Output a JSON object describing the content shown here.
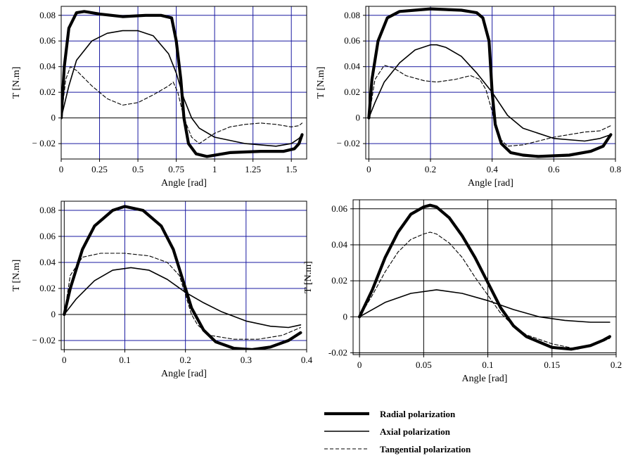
{
  "colors": {
    "grid_blue": "#1a1aa0",
    "grid_black": "#000000",
    "curve": "#000000"
  },
  "legend": [
    {
      "label": "Radial polarization",
      "style": "thick"
    },
    {
      "label": "Axial polarization",
      "style": "thin"
    },
    {
      "label": "Tangential polarization",
      "style": "dashed"
    }
  ],
  "chart_data": [
    {
      "type": "line",
      "xlabel": "Angle [rad]",
      "ylabel": "T [N.m]",
      "xlim": [
        0,
        1.6
      ],
      "ylim": [
        -0.032,
        0.087
      ],
      "xticks": [
        0,
        0.25,
        0.5,
        0.75,
        1,
        1.25,
        1.5
      ],
      "xtick_labels": [
        "0",
        "0.25",
        "0.5",
        "0.75",
        "1",
        "1.25",
        "1.5"
      ],
      "yticks": [
        -0.02,
        0,
        0.02,
        0.04,
        0.06,
        0.08
      ],
      "ytick_labels": [
        "− 0.02",
        "0",
        "0.02",
        "0.04",
        "0.06",
        "0.08"
      ],
      "grid": "blue",
      "series": [
        {
          "name": "Radial polarization",
          "style": "thick",
          "x": [
            0,
            0.02,
            0.05,
            0.1,
            0.15,
            0.25,
            0.4,
            0.55,
            0.65,
            0.72,
            0.75,
            0.78,
            0.8,
            0.83,
            0.88,
            0.95,
            1.1,
            1.3,
            1.45,
            1.52,
            1.55,
            1.57
          ],
          "y": [
            0,
            0.04,
            0.07,
            0.082,
            0.083,
            0.081,
            0.079,
            0.08,
            0.08,
            0.078,
            0.06,
            0.03,
            0.0,
            -0.02,
            -0.028,
            -0.03,
            -0.027,
            -0.026,
            -0.026,
            -0.024,
            -0.02,
            -0.013
          ]
        },
        {
          "name": "Axial polarization",
          "style": "thin",
          "x": [
            0,
            0.05,
            0.1,
            0.2,
            0.3,
            0.4,
            0.5,
            0.6,
            0.7,
            0.75,
            0.8,
            0.85,
            0.9,
            1.0,
            1.2,
            1.4,
            1.5,
            1.55,
            1.57
          ],
          "y": [
            0,
            0.025,
            0.045,
            0.06,
            0.066,
            0.068,
            0.068,
            0.064,
            0.05,
            0.035,
            0.015,
            0.0,
            -0.008,
            -0.015,
            -0.02,
            -0.022,
            -0.02,
            -0.016,
            -0.013
          ]
        },
        {
          "name": "Tangential polarization",
          "style": "dashed",
          "x": [
            0,
            0.03,
            0.06,
            0.1,
            0.2,
            0.3,
            0.4,
            0.5,
            0.6,
            0.7,
            0.73,
            0.76,
            0.8,
            0.85,
            0.9,
            1.0,
            1.1,
            1.2,
            1.3,
            1.4,
            1.5,
            1.55,
            1.57
          ],
          "y": [
            0,
            0.03,
            0.04,
            0.037,
            0.025,
            0.015,
            0.01,
            0.012,
            0.018,
            0.025,
            0.028,
            0.02,
            0.0,
            -0.015,
            -0.02,
            -0.012,
            -0.007,
            -0.005,
            -0.004,
            -0.005,
            -0.007,
            -0.006,
            -0.004
          ]
        }
      ]
    },
    {
      "type": "line",
      "xlabel": "Angle [rad]",
      "ylabel": "T [N.m]",
      "xlim": [
        -0.01,
        0.8
      ],
      "ylim": [
        -0.032,
        0.087
      ],
      "xticks": [
        0,
        0.2,
        0.4,
        0.6,
        0.8
      ],
      "xtick_labels": [
        "0",
        "0.2",
        "0.4",
        "0.6",
        "0.8"
      ],
      "yticks": [
        -0.02,
        0,
        0.02,
        0.04,
        0.06,
        0.08
      ],
      "ytick_labels": [
        "− 0.02",
        "0",
        "0.02",
        "0.04",
        "0.06",
        "0.08"
      ],
      "grid": "blue",
      "series": [
        {
          "name": "Radial polarization",
          "style": "thick",
          "x": [
            0,
            0.01,
            0.03,
            0.06,
            0.1,
            0.2,
            0.3,
            0.35,
            0.37,
            0.39,
            0.4,
            0.41,
            0.43,
            0.46,
            0.5,
            0.55,
            0.65,
            0.72,
            0.76,
            0.785
          ],
          "y": [
            0,
            0.03,
            0.06,
            0.078,
            0.083,
            0.085,
            0.084,
            0.082,
            0.078,
            0.06,
            0.02,
            -0.005,
            -0.02,
            -0.027,
            -0.029,
            -0.03,
            -0.029,
            -0.026,
            -0.022,
            -0.013
          ]
        },
        {
          "name": "Axial polarization",
          "style": "thin",
          "x": [
            0,
            0.02,
            0.05,
            0.1,
            0.15,
            0.2,
            0.22,
            0.25,
            0.3,
            0.35,
            0.4,
            0.45,
            0.5,
            0.6,
            0.7,
            0.75,
            0.785
          ],
          "y": [
            0,
            0.012,
            0.028,
            0.043,
            0.053,
            0.057,
            0.057,
            0.055,
            0.048,
            0.035,
            0.02,
            0.002,
            -0.008,
            -0.016,
            -0.018,
            -0.016,
            -0.013
          ]
        },
        {
          "name": "Tangential polarization",
          "style": "dashed",
          "x": [
            0,
            0.02,
            0.05,
            0.08,
            0.12,
            0.18,
            0.22,
            0.28,
            0.33,
            0.36,
            0.38,
            0.4,
            0.42,
            0.45,
            0.5,
            0.6,
            0.7,
            0.75,
            0.785
          ],
          "y": [
            0,
            0.03,
            0.041,
            0.039,
            0.033,
            0.029,
            0.028,
            0.03,
            0.033,
            0.03,
            0.022,
            0.005,
            -0.015,
            -0.022,
            -0.021,
            -0.015,
            -0.011,
            -0.01,
            -0.006
          ]
        }
      ]
    },
    {
      "type": "line",
      "xlabel": "Angle [rad]",
      "ylabel": "T [N.m]",
      "xlim": [
        -0.005,
        0.4
      ],
      "ylim": [
        -0.027,
        0.087
      ],
      "xticks": [
        0,
        0.1,
        0.2,
        0.3,
        0.4
      ],
      "xtick_labels": [
        "0",
        "0.1",
        "0.2",
        "0.3",
        "0.4"
      ],
      "yticks": [
        -0.02,
        0,
        0.02,
        0.04,
        0.06,
        0.08
      ],
      "ytick_labels": [
        "− 0.02",
        "0",
        "0.02",
        "0.04",
        "0.06",
        "0.08"
      ],
      "grid": "blue",
      "series": [
        {
          "name": "Radial polarization",
          "style": "thick",
          "x": [
            0,
            0.01,
            0.03,
            0.05,
            0.08,
            0.1,
            0.13,
            0.16,
            0.18,
            0.2,
            0.21,
            0.23,
            0.25,
            0.28,
            0.31,
            0.34,
            0.37,
            0.39
          ],
          "y": [
            0,
            0.02,
            0.05,
            0.068,
            0.08,
            0.083,
            0.08,
            0.068,
            0.05,
            0.02,
            0.005,
            -0.012,
            -0.021,
            -0.026,
            -0.027,
            -0.025,
            -0.02,
            -0.014
          ]
        },
        {
          "name": "Axial polarization",
          "style": "thin",
          "x": [
            0,
            0.02,
            0.05,
            0.08,
            0.11,
            0.14,
            0.17,
            0.2,
            0.23,
            0.26,
            0.3,
            0.34,
            0.37,
            0.39
          ],
          "y": [
            0,
            0.012,
            0.026,
            0.034,
            0.036,
            0.034,
            0.027,
            0.017,
            0.009,
            0.002,
            -0.005,
            -0.009,
            -0.01,
            -0.008
          ]
        },
        {
          "name": "Tangential polarization",
          "style": "dashed",
          "x": [
            0,
            0.01,
            0.03,
            0.06,
            0.1,
            0.14,
            0.17,
            0.19,
            0.2,
            0.21,
            0.22,
            0.24,
            0.28,
            0.32,
            0.36,
            0.39
          ],
          "y": [
            0,
            0.03,
            0.044,
            0.047,
            0.047,
            0.045,
            0.04,
            0.03,
            0.015,
            0.0,
            -0.008,
            -0.016,
            -0.019,
            -0.019,
            -0.016,
            -0.01
          ]
        }
      ]
    },
    {
      "type": "line",
      "xlabel": "Angle [rad]",
      "ylabel": "T [N.m]",
      "xlim": [
        -0.005,
        0.2
      ],
      "ylim": [
        -0.021,
        0.065
      ],
      "xticks": [
        0,
        0.05,
        0.1,
        0.15,
        0.2
      ],
      "xtick_labels": [
        "0",
        "0.05",
        "0.1",
        "0.15",
        "0.2"
      ],
      "yticks": [
        -0.02,
        0,
        0.02,
        0.04,
        0.06
      ],
      "ytick_labels": [
        "-0.02",
        "0",
        "0.02",
        "0.04",
        "0.06"
      ],
      "grid": "black",
      "series": [
        {
          "name": "Radial polarization",
          "style": "thick",
          "x": [
            0,
            0.01,
            0.02,
            0.03,
            0.04,
            0.05,
            0.055,
            0.06,
            0.07,
            0.08,
            0.09,
            0.1,
            0.11,
            0.12,
            0.13,
            0.15,
            0.165,
            0.18,
            0.19,
            0.195
          ],
          "y": [
            0,
            0.015,
            0.033,
            0.047,
            0.057,
            0.061,
            0.062,
            0.061,
            0.055,
            0.045,
            0.033,
            0.019,
            0.005,
            -0.005,
            -0.011,
            -0.017,
            -0.018,
            -0.016,
            -0.013,
            -0.011
          ]
        },
        {
          "name": "Axial polarization",
          "style": "thin",
          "x": [
            0,
            0.02,
            0.04,
            0.06,
            0.08,
            0.1,
            0.12,
            0.14,
            0.16,
            0.18,
            0.195
          ],
          "y": [
            0,
            0.008,
            0.013,
            0.015,
            0.013,
            0.009,
            0.004,
            0.0,
            -0.002,
            -0.003,
            -0.003
          ]
        },
        {
          "name": "Tangential polarization",
          "style": "dashed",
          "x": [
            0,
            0.01,
            0.02,
            0.03,
            0.04,
            0.05,
            0.055,
            0.06,
            0.07,
            0.08,
            0.09,
            0.1,
            0.11,
            0.12,
            0.13,
            0.15,
            0.17,
            0.185,
            0.195
          ],
          "y": [
            0,
            0.012,
            0.025,
            0.036,
            0.043,
            0.046,
            0.047,
            0.046,
            0.041,
            0.033,
            0.022,
            0.012,
            0.002,
            -0.005,
            -0.01,
            -0.015,
            -0.018,
            -0.015,
            -0.012
          ]
        }
      ]
    }
  ]
}
